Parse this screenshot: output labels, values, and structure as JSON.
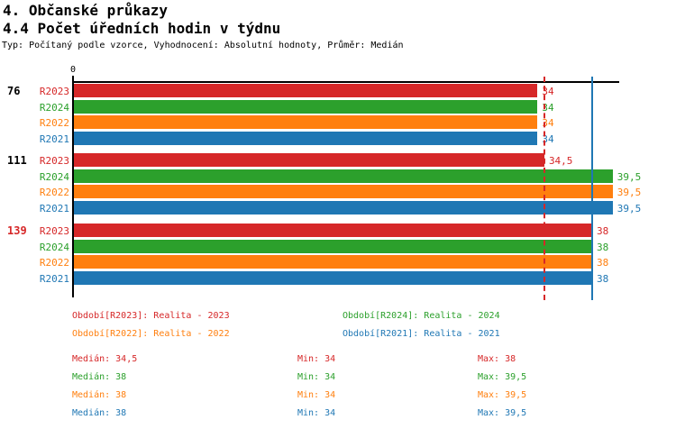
{
  "header": {
    "title1": "4. Občanské průkazy",
    "title2": "4.4 Počet úředních hodin v týdnu",
    "subtitle": "Typ: Počítaný podle vzorce, Vyhodnocení: Absolutní hodnoty, Průměr: Medián"
  },
  "colors": {
    "series": {
      "R2023": "#d62728",
      "R2024": "#2ca02c",
      "R2022": "#ff7f0e",
      "R2021": "#1f77b4"
    },
    "axis": "#000000",
    "highlighted_group_label": "#d62728"
  },
  "chart_data": {
    "type": "bar",
    "orientation": "horizontal",
    "title": "4.4 Počet úředních hodin v týdnu",
    "x_axis": {
      "origin_label": "0",
      "min": 0,
      "max": 40
    },
    "series_order": [
      "R2023",
      "R2024",
      "R2022",
      "R2021"
    ],
    "groups": [
      {
        "label": "76",
        "label_color": "#000000",
        "bars": [
          {
            "series": "R2023",
            "value": 34,
            "label": "34"
          },
          {
            "series": "R2024",
            "value": 34,
            "label": "34"
          },
          {
            "series": "R2022",
            "value": 34,
            "label": "34"
          },
          {
            "series": "R2021",
            "value": 34,
            "label": "34"
          }
        ]
      },
      {
        "label": "111",
        "label_color": "#000000",
        "bars": [
          {
            "series": "R2023",
            "value": 34.5,
            "label": "34,5"
          },
          {
            "series": "R2024",
            "value": 39.5,
            "label": "39,5"
          },
          {
            "series": "R2022",
            "value": 39.5,
            "label": "39,5"
          },
          {
            "series": "R2021",
            "value": 39.5,
            "label": "39,5"
          }
        ]
      },
      {
        "label": "139",
        "label_color": "#d62728",
        "bars": [
          {
            "series": "R2023",
            "value": 38,
            "label": "38"
          },
          {
            "series": "R2024",
            "value": 38,
            "label": "38"
          },
          {
            "series": "R2022",
            "value": 38,
            "label": "38"
          },
          {
            "series": "R2021",
            "value": 38,
            "label": "38"
          }
        ]
      }
    ],
    "reference_lines": [
      {
        "series": "R2023",
        "value": 34.5,
        "color": "#d62728",
        "style": "dashed"
      },
      {
        "series": "R2021",
        "value": 38,
        "color": "#1f77b4",
        "style": "solid"
      }
    ]
  },
  "legend": {
    "items": [
      {
        "series": "R2023",
        "text": "Období[R2023]: Realita - 2023"
      },
      {
        "series": "R2024",
        "text": "Období[R2024]: Realita - 2024"
      },
      {
        "series": "R2022",
        "text": "Období[R2022]: Realita - 2022"
      },
      {
        "series": "R2021",
        "text": "Období[R2021]: Realita - 2021"
      }
    ]
  },
  "stats": {
    "rows": [
      {
        "series": "R2023",
        "median": "Medián: 34,5",
        "min": "Min: 34",
        "max": "Max: 38"
      },
      {
        "series": "R2024",
        "median": "Medián: 38",
        "min": "Min: 34",
        "max": "Max: 39,5"
      },
      {
        "series": "R2022",
        "median": "Medián: 38",
        "min": "Min: 34",
        "max": "Max: 39,5"
      },
      {
        "series": "R2021",
        "median": "Medián: 38",
        "min": "Min: 34",
        "max": "Max: 39,5"
      }
    ]
  }
}
